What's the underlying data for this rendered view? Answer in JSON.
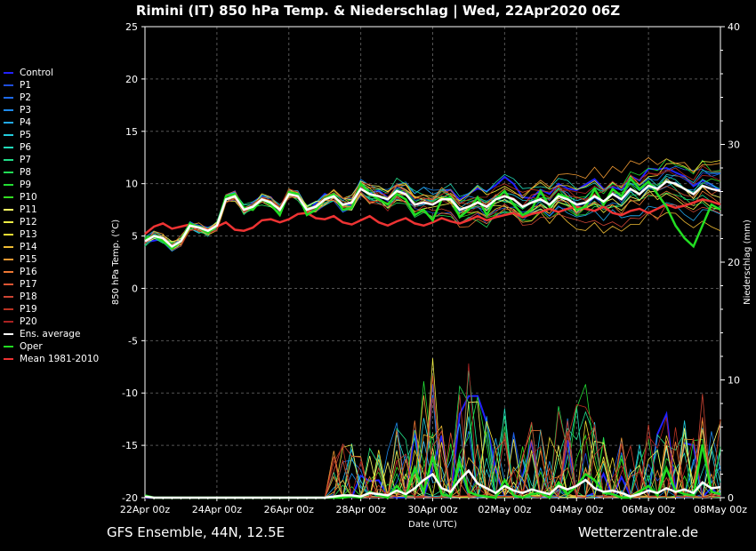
{
  "title": "Rimini  (IT)  850 hPa Temp. & Niederschlag | Wed, 22Apr2020 06Z",
  "footer": {
    "left": "GFS Ensemble, 44N, 12.5E",
    "right": "Wetterzentrale.de"
  },
  "chart_data": {
    "type": "line",
    "xlabel": "Date (UTC)",
    "ylabel_left": "850 hPa Temp. (°C)",
    "ylabel_right": "Niederschlag (mm)",
    "ylim_left": [
      -20,
      25
    ],
    "ylim_right": [
      0,
      40
    ],
    "x_steps": 64,
    "step_hours": 6,
    "x_ticks": [
      {
        "label": "22Apr 00z",
        "step": 0
      },
      {
        "label": "24Apr 00z",
        "step": 8
      },
      {
        "label": "26Apr 00z",
        "step": 16
      },
      {
        "label": "28Apr 00z",
        "step": 24
      },
      {
        "label": "30Apr 00z",
        "step": 32
      },
      {
        "label": "02May 00z",
        "step": 40
      },
      {
        "label": "04May 00z",
        "step": 48
      },
      {
        "label": "06May 00z",
        "step": 56
      },
      {
        "label": "08May 00z",
        "step": 64
      }
    ],
    "y_ticks_left": [
      25,
      20,
      15,
      10,
      5,
      0,
      -5,
      -10,
      -15,
      -20
    ],
    "y_ticks_right": [
      40,
      30,
      20,
      10,
      0
    ],
    "grid": true,
    "ens_average_temp": [
      4.5,
      5.0,
      4.8,
      4.0,
      4.5,
      6.0,
      5.8,
      5.5,
      6.0,
      8.5,
      8.8,
      7.5,
      7.8,
      8.5,
      8.2,
      7.5,
      9.0,
      8.8,
      7.5,
      7.8,
      8.5,
      8.8,
      8.0,
      8.2,
      9.5,
      9.0,
      8.8,
      8.5,
      9.3,
      9.0,
      8.0,
      8.2,
      8.0,
      8.5,
      8.5,
      7.5,
      7.8,
      8.2,
      7.8,
      8.5,
      8.8,
      8.5,
      7.8,
      8.2,
      8.5,
      8.0,
      8.8,
      8.5,
      8.0,
      8.2,
      8.8,
      8.3,
      9.0,
      8.5,
      9.5,
      9.0,
      9.8,
      9.5,
      10.2,
      10.0,
      9.5,
      9.0,
      9.8,
      9.5,
      9.3
    ],
    "oper_temp": [
      4.7,
      5.0,
      4.5,
      3.8,
      4.5,
      6.2,
      5.8,
      5.3,
      6.0,
      8.8,
      9.0,
      7.7,
      7.5,
      8.5,
      8.0,
      7.0,
      9.2,
      9.0,
      7.0,
      7.5,
      8.6,
      9.0,
      7.5,
      7.7,
      10.0,
      9.0,
      8.5,
      8.0,
      9.0,
      8.5,
      7.0,
      7.5,
      6.5,
      8.5,
      8.7,
      6.8,
      7.5,
      8.7,
      7.0,
      8.5,
      9.3,
      8.0,
      7.0,
      7.5,
      9.3,
      7.8,
      9.0,
      8.7,
      7.5,
      7.8,
      9.5,
      8.0,
      9.5,
      8.8,
      10.5,
      9.5,
      10.2,
      9.0,
      7.8,
      6.0,
      4.8,
      4.0,
      6.0,
      8.0,
      7.5
    ],
    "mean_1981_2010": [
      5.2,
      5.9,
      6.2,
      5.7,
      5.9,
      6.1,
      5.8,
      5.6,
      5.9,
      6.3,
      5.6,
      5.5,
      5.8,
      6.5,
      6.6,
      6.3,
      6.6,
      7.1,
      7.2,
      6.7,
      6.6,
      6.9,
      6.3,
      6.1,
      6.5,
      6.9,
      6.3,
      6.0,
      6.4,
      6.7,
      6.2,
      6.0,
      6.3,
      6.7,
      6.4,
      6.2,
      6.5,
      6.9,
      6.5,
      6.8,
      7.0,
      7.2,
      6.8,
      7.1,
      7.3,
      7.6,
      7.3,
      7.6,
      7.8,
      7.6,
      7.4,
      7.8,
      7.2,
      7.0,
      7.4,
      7.6,
      7.2,
      7.6,
      8.0,
      7.7,
      7.9,
      8.2,
      8.5,
      8.3,
      8.0
    ],
    "ens_average_precip": [
      0.1,
      0,
      0,
      0,
      0,
      0,
      0,
      0,
      0,
      0,
      0,
      0,
      0,
      0,
      0,
      0,
      0,
      0,
      0,
      0,
      0,
      0.1,
      0.2,
      0.2,
      0.1,
      0.4,
      0.3,
      0.2,
      0.6,
      0.3,
      0.8,
      1.5,
      2.0,
      0.8,
      0.5,
      1.5,
      2.3,
      1.2,
      0.8,
      0.4,
      1.0,
      0.6,
      0.4,
      0.7,
      0.5,
      0.3,
      1.0,
      0.7,
      1.0,
      1.5,
      0.8,
      0.5,
      0.6,
      0.4,
      0.1,
      0.3,
      0.6,
      0.4,
      0.8,
      0.5,
      0.7,
      0.4,
      1.3,
      0.8,
      0.9
    ],
    "oper_precip": [
      0.2,
      0,
      0,
      0,
      0,
      0,
      0,
      0,
      0,
      0,
      0,
      0,
      0,
      0,
      0,
      0,
      0,
      0,
      0,
      0,
      0,
      0,
      0,
      0.1,
      0,
      0.5,
      0.2,
      0,
      1.0,
      0.1,
      2.5,
      0.5,
      3.5,
      0.3,
      0.1,
      3.0,
      0.5,
      0.2,
      0.1,
      0,
      1.5,
      0.2,
      0,
      0.3,
      0.4,
      0,
      1.3,
      0.3,
      1.0,
      2.0,
      1.5,
      0.4,
      0.3,
      0,
      0,
      0.5,
      1.0,
      0.2,
      2.5,
      0.6,
      0.3,
      0.2,
      4.5,
      0.5,
      0.3
    ],
    "series": [
      {
        "name": "Control",
        "color": "#2222ff"
      },
      {
        "name": "P1",
        "color": "#1e4ddb"
      },
      {
        "name": "P2",
        "color": "#1e6aeb"
      },
      {
        "name": "P3",
        "color": "#1e8aeb"
      },
      {
        "name": "P4",
        "color": "#22aaee"
      },
      {
        "name": "P5",
        "color": "#22ccdd"
      },
      {
        "name": "P6",
        "color": "#22ddbb"
      },
      {
        "name": "P7",
        "color": "#22dd88"
      },
      {
        "name": "P8",
        "color": "#22dd55"
      },
      {
        "name": "P9",
        "color": "#22dd33"
      },
      {
        "name": "P10",
        "color": "#33dd22"
      },
      {
        "name": "P11",
        "color": "#ffff66"
      },
      {
        "name": "P12",
        "color": "#eeee44"
      },
      {
        "name": "P13",
        "color": "#eedd33"
      },
      {
        "name": "P14",
        "color": "#eebb33"
      },
      {
        "name": "P15",
        "color": "#ee9933"
      },
      {
        "name": "P16",
        "color": "#ee7733"
      },
      {
        "name": "P17",
        "color": "#dd5533"
      },
      {
        "name": "P18",
        "color": "#cc4433"
      },
      {
        "name": "P19",
        "color": "#bb3322"
      },
      {
        "name": "P20",
        "color": "#aa2222"
      },
      {
        "name": "Ens. average",
        "color": "#ffffff"
      },
      {
        "name": "Oper",
        "color": "#22dd22"
      },
      {
        "name": "Mean 1981-2010",
        "color": "#ee3333"
      }
    ]
  }
}
